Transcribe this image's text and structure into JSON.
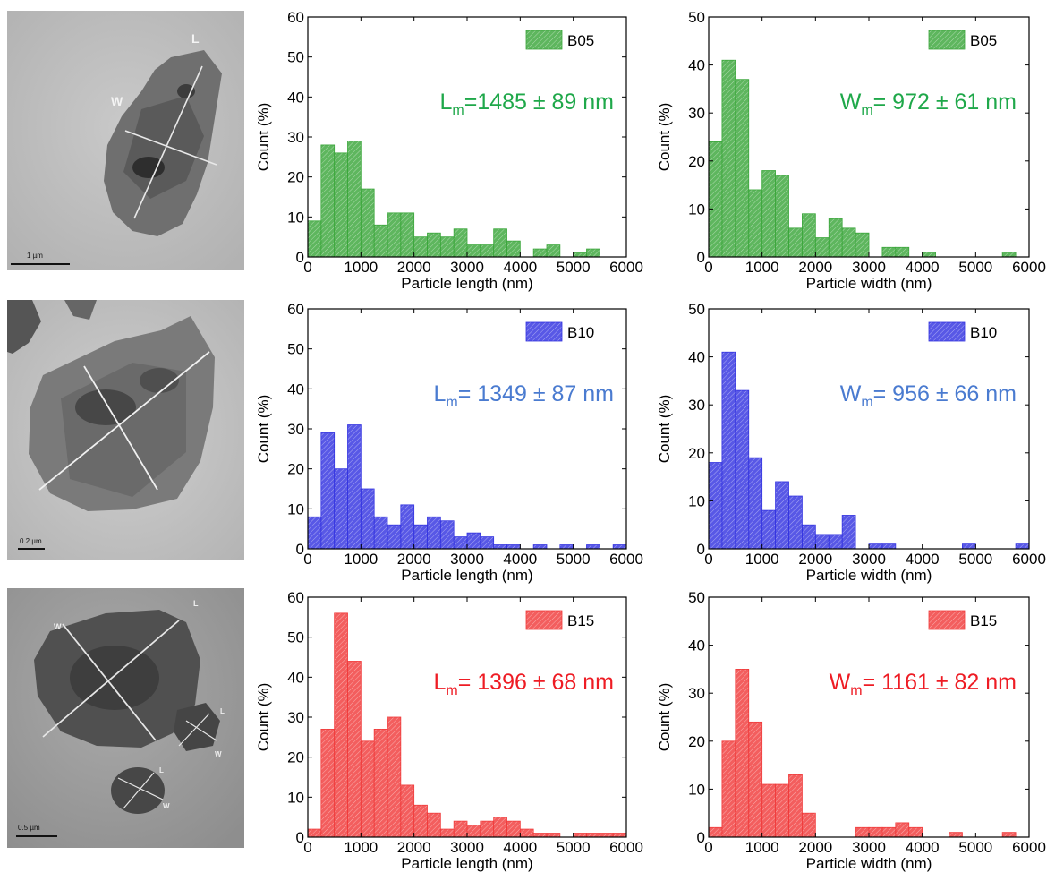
{
  "colors": {
    "B05": "#3aa63a",
    "B10": "#3333e0",
    "B15": "#f03a3a",
    "B05_text": "#1fa84a",
    "B10_text": "#4a7bd0",
    "B15_text": "#ee1c24"
  },
  "micrographs": [
    {
      "scale_label": "1 µm",
      "labels": [
        "L",
        "W"
      ]
    },
    {
      "scale_label": "0.2 µm",
      "labels": []
    },
    {
      "scale_label": "0.5 µm",
      "labels": [
        "L",
        "W",
        "L",
        "W",
        "L",
        "W"
      ]
    }
  ],
  "chart_data": [
    {
      "type": "bar",
      "xlabel": "Particle length (nm)",
      "ylabel": "Count (%)",
      "xlim": [
        0,
        6000
      ],
      "ylim": [
        0,
        60
      ],
      "xticks": [
        0,
        1000,
        2000,
        3000,
        4000,
        5000,
        6000
      ],
      "yticks": [
        0,
        10,
        20,
        30,
        40,
        50,
        60
      ],
      "bin_width": 250,
      "series": [
        {
          "name": "B05",
          "color": "#3aa63a"
        }
      ],
      "annotation": {
        "base": "L",
        "sub": "m",
        "rest": "=1485 ± 89 nm"
      },
      "x": [
        0,
        250,
        500,
        750,
        1000,
        1250,
        1500,
        1750,
        2000,
        2250,
        2500,
        2750,
        3000,
        3250,
        3500,
        3750,
        4000,
        4250,
        4500,
        4750,
        5000,
        5250,
        5500,
        5750
      ],
      "values": [
        9,
        28,
        26,
        29,
        17,
        8,
        11,
        11,
        5,
        6,
        5,
        7,
        3,
        3,
        7,
        4,
        0,
        2,
        3,
        0,
        1,
        2,
        0,
        0
      ]
    },
    {
      "type": "bar",
      "xlabel": "Particle width (nm)",
      "ylabel": "Count (%)",
      "xlim": [
        0,
        6000
      ],
      "ylim": [
        0,
        50
      ],
      "xticks": [
        0,
        1000,
        2000,
        3000,
        4000,
        5000,
        6000
      ],
      "yticks": [
        0,
        10,
        20,
        30,
        40,
        50
      ],
      "bin_width": 250,
      "series": [
        {
          "name": "B05",
          "color": "#3aa63a"
        }
      ],
      "annotation": {
        "base": "W",
        "sub": "m",
        "rest": "= 972 ± 61 nm"
      },
      "x": [
        0,
        250,
        500,
        750,
        1000,
        1250,
        1500,
        1750,
        2000,
        2250,
        2500,
        2750,
        3000,
        3250,
        3500,
        3750,
        4000,
        4250,
        4500,
        4750,
        5000,
        5250,
        5500,
        5750
      ],
      "values": [
        24,
        41,
        37,
        14,
        18,
        17,
        6,
        9,
        4,
        8,
        6,
        5,
        0,
        2,
        2,
        0,
        1,
        0,
        0,
        0,
        0,
        0,
        1,
        0
      ]
    },
    {
      "type": "bar",
      "xlabel": "Particle length (nm)",
      "ylabel": "Count (%)",
      "xlim": [
        0,
        6000
      ],
      "ylim": [
        0,
        60
      ],
      "xticks": [
        0,
        1000,
        2000,
        3000,
        4000,
        5000,
        6000
      ],
      "yticks": [
        0,
        10,
        20,
        30,
        40,
        50,
        60
      ],
      "bin_width": 250,
      "series": [
        {
          "name": "B10",
          "color": "#3333e0"
        }
      ],
      "annotation": {
        "base": "L",
        "sub": "m",
        "rest": "= 1349 ± 87 nm"
      },
      "x": [
        0,
        250,
        500,
        750,
        1000,
        1250,
        1500,
        1750,
        2000,
        2250,
        2500,
        2750,
        3000,
        3250,
        3500,
        3750,
        4000,
        4250,
        4500,
        4750,
        5000,
        5250,
        5500,
        5750
      ],
      "values": [
        8,
        29,
        20,
        31,
        15,
        8,
        6,
        11,
        6,
        8,
        7,
        3,
        4,
        3,
        1,
        1,
        0,
        1,
        0,
        1,
        0,
        1,
        0,
        1
      ]
    },
    {
      "type": "bar",
      "xlabel": "Particle width (nm)",
      "ylabel": "Count (%)",
      "xlim": [
        0,
        6000
      ],
      "ylim": [
        0,
        50
      ],
      "xticks": [
        0,
        1000,
        2000,
        3000,
        4000,
        5000,
        6000
      ],
      "yticks": [
        0,
        10,
        20,
        30,
        40,
        50
      ],
      "bin_width": 250,
      "series": [
        {
          "name": "B10",
          "color": "#3333e0"
        }
      ],
      "annotation": {
        "base": "W",
        "sub": "m",
        "rest": "= 956 ± 66 nm"
      },
      "x": [
        0,
        250,
        500,
        750,
        1000,
        1250,
        1500,
        1750,
        2000,
        2250,
        2500,
        2750,
        3000,
        3250,
        3500,
        3750,
        4000,
        4250,
        4500,
        4750,
        5000,
        5250,
        5500,
        5750
      ],
      "values": [
        18,
        41,
        33,
        19,
        8,
        14,
        11,
        5,
        3,
        3,
        7,
        0,
        1,
        1,
        0,
        0,
        0,
        0,
        0,
        1,
        0,
        0,
        0,
        1
      ]
    },
    {
      "type": "bar",
      "xlabel": "Particle length (nm)",
      "ylabel": "Count (%)",
      "xlim": [
        0,
        6000
      ],
      "ylim": [
        0,
        60
      ],
      "xticks": [
        0,
        1000,
        2000,
        3000,
        4000,
        5000,
        6000
      ],
      "yticks": [
        0,
        10,
        20,
        30,
        40,
        50,
        60
      ],
      "bin_width": 250,
      "series": [
        {
          "name": "B15",
          "color": "#f03a3a"
        }
      ],
      "annotation": {
        "base": "L",
        "sub": "m",
        "rest": "= 1396 ± 68 nm"
      },
      "x": [
        0,
        250,
        500,
        750,
        1000,
        1250,
        1500,
        1750,
        2000,
        2250,
        2500,
        2750,
        3000,
        3250,
        3500,
        3750,
        4000,
        4250,
        4500,
        4750,
        5000,
        5250,
        5500,
        5750
      ],
      "values": [
        2,
        27,
        56,
        44,
        24,
        27,
        30,
        13,
        8,
        6,
        2,
        4,
        3,
        4,
        5,
        4,
        2,
        1,
        1,
        0,
        1,
        1,
        1,
        1
      ]
    },
    {
      "type": "bar",
      "xlabel": "Particle width (nm)",
      "ylabel": "Count (%)",
      "xlim": [
        0,
        6000
      ],
      "ylim": [
        0,
        50
      ],
      "xticks": [
        0,
        1000,
        2000,
        3000,
        4000,
        5000,
        6000
      ],
      "yticks": [
        0,
        10,
        20,
        30,
        40,
        50
      ],
      "bin_width": 250,
      "series": [
        {
          "name": "B15",
          "color": "#f03a3a"
        }
      ],
      "annotation": {
        "base": "W",
        "sub": "m",
        "rest": "= 1161 ± 82 nm"
      },
      "x": [
        0,
        250,
        500,
        750,
        1000,
        1250,
        1500,
        1750,
        2000,
        2250,
        2500,
        2750,
        3000,
        3250,
        3500,
        3750,
        4000,
        4250,
        4500,
        4750,
        5000,
        5250,
        5500,
        5750
      ],
      "values": [
        2,
        20,
        35,
        24,
        11,
        11,
        13,
        5,
        0,
        0,
        0,
        2,
        2,
        2,
        3,
        2,
        0,
        0,
        1,
        0,
        0,
        0,
        1,
        0
      ]
    }
  ]
}
